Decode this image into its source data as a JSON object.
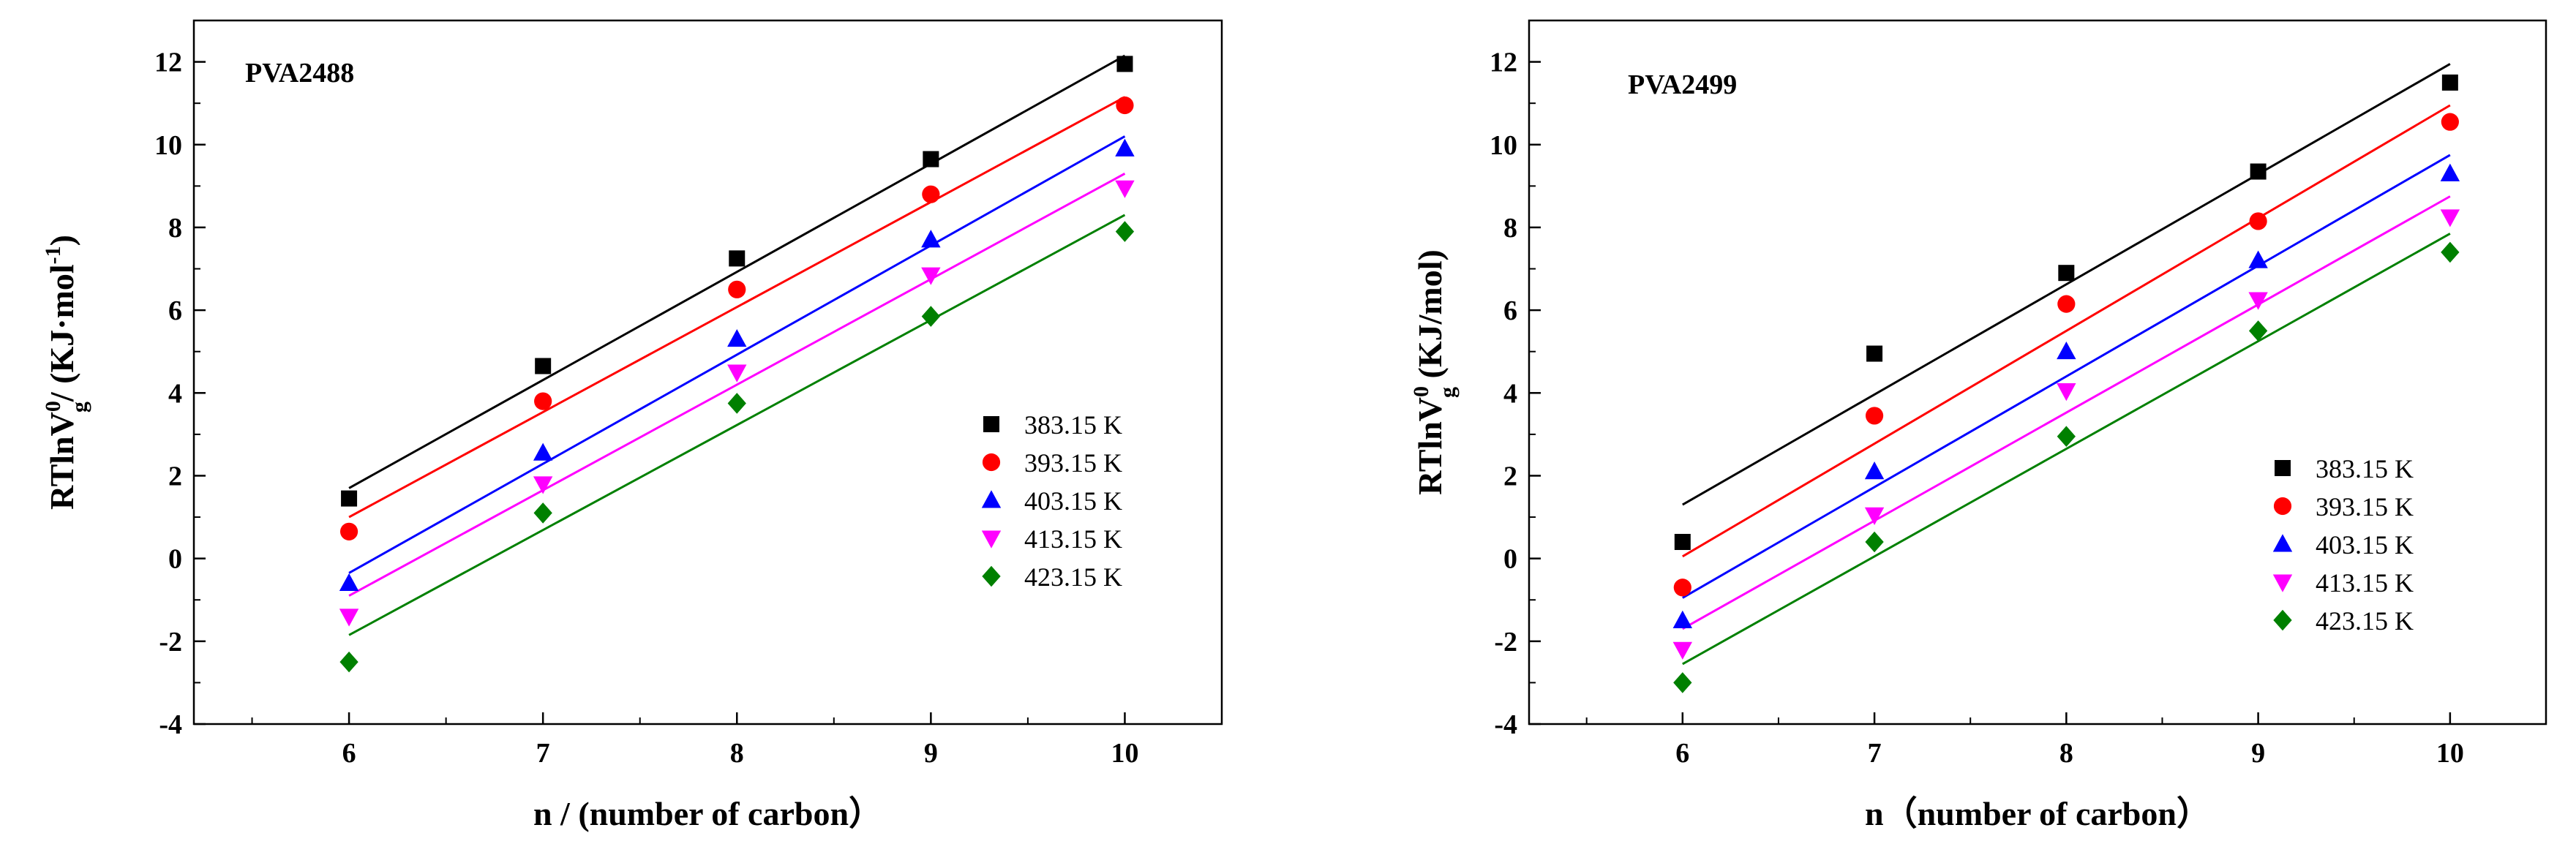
{
  "chart_data": [
    {
      "type": "scatter",
      "title": "PVA2488",
      "xlabel_parts": [
        "n / (number of carbon",
        "）"
      ],
      "ylabel_parts": {
        "base": "RTlnV",
        "sup": "0",
        "sub": "g",
        "tail": "/ (KJ·mol",
        "tail_sup": "-1",
        "end": ")"
      },
      "xlim": [
        5.2,
        10.5
      ],
      "ylim": [
        -4,
        13
      ],
      "xticks": [
        6,
        7,
        8,
        9,
        10
      ],
      "yticks": [
        -4,
        -2,
        0,
        2,
        4,
        6,
        8,
        10,
        12
      ],
      "legend_position": "center-right",
      "series": [
        {
          "name": "383.15 K",
          "color": "#000000",
          "marker": "square",
          "x": [
            6,
            7,
            8,
            9,
            10
          ],
          "y": [
            1.45,
            4.65,
            7.25,
            9.65,
            11.95
          ],
          "fit": {
            "x": [
              6,
              10
            ],
            "y": [
              1.7,
              12.15
            ]
          }
        },
        {
          "name": "393.15 K",
          "color": "#ff0000",
          "marker": "circle",
          "x": [
            6,
            7,
            8,
            9,
            10
          ],
          "y": [
            0.65,
            3.8,
            6.5,
            8.8,
            10.95
          ],
          "fit": {
            "x": [
              6,
              10
            ],
            "y": [
              1.0,
              11.15
            ]
          }
        },
        {
          "name": "403.15 K",
          "color": "#0000ff",
          "marker": "triangle-up",
          "x": [
            6,
            7,
            8,
            9,
            10
          ],
          "y": [
            -0.6,
            2.55,
            5.3,
            7.7,
            9.9
          ],
          "fit": {
            "x": [
              6,
              10
            ],
            "y": [
              -0.35,
              10.2
            ]
          }
        },
        {
          "name": "413.15 K",
          "color": "#ff00ff",
          "marker": "triangle-down",
          "x": [
            6,
            7,
            8,
            9,
            10
          ],
          "y": [
            -1.4,
            1.8,
            4.5,
            6.85,
            8.95
          ],
          "fit": {
            "x": [
              6,
              10
            ],
            "y": [
              -0.9,
              9.3
            ]
          }
        },
        {
          "name": "423.15 K",
          "color": "#008000",
          "marker": "diamond",
          "x": [
            6,
            7,
            8,
            9,
            10
          ],
          "y": [
            -2.5,
            1.1,
            3.75,
            5.85,
            7.9
          ],
          "fit": {
            "x": [
              6,
              10
            ],
            "y": [
              -1.85,
              8.3
            ]
          }
        }
      ]
    },
    {
      "type": "scatter",
      "title": "PVA2499",
      "xlabel_parts": [
        "n（number of carbon",
        "）"
      ],
      "ylabel_parts": {
        "base": "RTlnV",
        "sup": "0",
        "sub": "g",
        "tail": " (KJ/mol)",
        "tail_sup": "",
        "end": ""
      },
      "xlim": [
        5.2,
        10.5
      ],
      "ylim": [
        -4,
        13
      ],
      "xticks": [
        6,
        7,
        8,
        9,
        10
      ],
      "yticks": [
        -4,
        -2,
        0,
        2,
        4,
        6,
        8,
        10,
        12
      ],
      "legend_position": "bottom-right",
      "series": [
        {
          "name": "383.15 K",
          "color": "#000000",
          "marker": "square",
          "x": [
            6,
            7,
            8,
            9,
            10
          ],
          "y": [
            0.4,
            4.95,
            6.9,
            9.35,
            11.5
          ],
          "fit": {
            "x": [
              6,
              10
            ],
            "y": [
              1.3,
              11.95
            ]
          }
        },
        {
          "name": "393.15 K",
          "color": "#ff0000",
          "marker": "circle",
          "x": [
            6,
            7,
            8,
            9,
            10
          ],
          "y": [
            -0.7,
            3.45,
            6.15,
            8.15,
            10.55
          ],
          "fit": {
            "x": [
              6,
              10
            ],
            "y": [
              0.05,
              10.95
            ]
          }
        },
        {
          "name": "403.15 K",
          "color": "#0000ff",
          "marker": "triangle-up",
          "x": [
            6,
            7,
            8,
            9,
            10
          ],
          "y": [
            -1.5,
            2.1,
            5.0,
            7.2,
            9.3
          ],
          "fit": {
            "x": [
              6,
              10
            ],
            "y": [
              -0.95,
              9.75
            ]
          }
        },
        {
          "name": "413.15 K",
          "color": "#ff00ff",
          "marker": "triangle-down",
          "x": [
            6,
            7,
            8,
            9,
            10
          ],
          "y": [
            -2.2,
            1.05,
            4.05,
            6.25,
            8.25
          ],
          "fit": {
            "x": [
              6,
              10
            ],
            "y": [
              -1.7,
              8.75
            ]
          }
        },
        {
          "name": "423.15 K",
          "color": "#008000",
          "marker": "diamond",
          "x": [
            6,
            7,
            8,
            9,
            10
          ],
          "y": [
            -3.0,
            0.4,
            2.95,
            5.5,
            7.4
          ],
          "fit": {
            "x": [
              6,
              10
            ],
            "y": [
              -2.55,
              7.85
            ]
          }
        }
      ]
    }
  ]
}
